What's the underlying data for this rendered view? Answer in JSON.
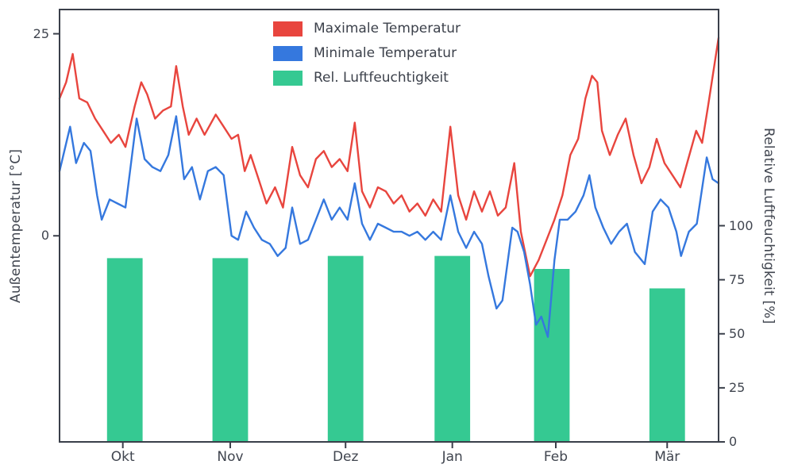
{
  "chart_data": {
    "type": "line+bar",
    "title": "",
    "background_color": "#ffffff",
    "spine_color": "#3a3f4a",
    "text_color": "#40454f",
    "grid": false,
    "legend_position": "upper center",
    "left_axis": {
      "label": "Außentemperatur [°C]",
      "ticks": [
        0,
        25
      ],
      "range": [
        -25.5,
        28
      ]
    },
    "right_axis": {
      "label": "Relative Luftfeuchtigkeit [%]",
      "ticks": [
        0,
        25,
        50,
        75,
        100
      ],
      "range": [
        0,
        200
      ]
    },
    "x_axis": {
      "tick_labels": [
        "Okt",
        "Nov",
        "Dez",
        "Jan",
        "Feb",
        "Mär"
      ],
      "tick_positions": [
        0.096,
        0.259,
        0.434,
        0.596,
        0.753,
        0.922
      ]
    },
    "series": [
      {
        "name": "Maximale Temperatur",
        "type": "line",
        "axis": "left",
        "color": "#e8453e",
        "unit": "°C",
        "points": [
          [
            0.0,
            17.0
          ],
          [
            0.01,
            19.0
          ],
          [
            0.02,
            22.5
          ],
          [
            0.03,
            17.0
          ],
          [
            0.042,
            16.5
          ],
          [
            0.054,
            14.5
          ],
          [
            0.066,
            13.0
          ],
          [
            0.078,
            11.5
          ],
          [
            0.09,
            12.5
          ],
          [
            0.1,
            11.0
          ],
          [
            0.114,
            16.0
          ],
          [
            0.124,
            19.0
          ],
          [
            0.133,
            17.5
          ],
          [
            0.145,
            14.5
          ],
          [
            0.157,
            15.5
          ],
          [
            0.169,
            16.0
          ],
          [
            0.177,
            21.0
          ],
          [
            0.187,
            16.0
          ],
          [
            0.196,
            12.5
          ],
          [
            0.208,
            14.5
          ],
          [
            0.22,
            12.5
          ],
          [
            0.237,
            15.0
          ],
          [
            0.249,
            13.5
          ],
          [
            0.261,
            12.0
          ],
          [
            0.271,
            12.5
          ],
          [
            0.281,
            8.0
          ],
          [
            0.29,
            10.0
          ],
          [
            0.302,
            7.0
          ],
          [
            0.314,
            4.0
          ],
          [
            0.327,
            6.0
          ],
          [
            0.339,
            3.5
          ],
          [
            0.353,
            11.0
          ],
          [
            0.365,
            7.5
          ],
          [
            0.377,
            6.0
          ],
          [
            0.389,
            9.5
          ],
          [
            0.401,
            10.5
          ],
          [
            0.413,
            8.5
          ],
          [
            0.425,
            9.5
          ],
          [
            0.437,
            8.0
          ],
          [
            0.448,
            14.0
          ],
          [
            0.459,
            5.5
          ],
          [
            0.471,
            3.5
          ],
          [
            0.483,
            6.0
          ],
          [
            0.495,
            5.5
          ],
          [
            0.507,
            4.0
          ],
          [
            0.519,
            5.0
          ],
          [
            0.531,
            3.0
          ],
          [
            0.543,
            4.0
          ],
          [
            0.555,
            2.5
          ],
          [
            0.567,
            4.5
          ],
          [
            0.579,
            3.0
          ],
          [
            0.593,
            13.5
          ],
          [
            0.605,
            5.0
          ],
          [
            0.617,
            2.0
          ],
          [
            0.629,
            5.5
          ],
          [
            0.641,
            3.0
          ],
          [
            0.653,
            5.5
          ],
          [
            0.665,
            2.5
          ],
          [
            0.677,
            3.5
          ],
          [
            0.69,
            9.0
          ],
          [
            0.7,
            0.5
          ],
          [
            0.714,
            -5.0
          ],
          [
            0.727,
            -3.0
          ],
          [
            0.739,
            -0.5
          ],
          [
            0.751,
            2.0
          ],
          [
            0.763,
            5.0
          ],
          [
            0.775,
            10.0
          ],
          [
            0.787,
            12.0
          ],
          [
            0.798,
            17.0
          ],
          [
            0.808,
            19.8
          ],
          [
            0.816,
            19.0
          ],
          [
            0.823,
            13.0
          ],
          [
            0.835,
            10.0
          ],
          [
            0.847,
            12.5
          ],
          [
            0.859,
            14.5
          ],
          [
            0.871,
            10.0
          ],
          [
            0.883,
            6.5
          ],
          [
            0.895,
            8.5
          ],
          [
            0.906,
            12.0
          ],
          [
            0.918,
            9.0
          ],
          [
            0.93,
            7.5
          ],
          [
            0.942,
            6.0
          ],
          [
            0.954,
            9.5
          ],
          [
            0.966,
            13.0
          ],
          [
            0.975,
            11.5
          ],
          [
            0.984,
            16.0
          ],
          [
            1.0,
            24.5
          ]
        ]
      },
      {
        "name": "Minimale Temperatur",
        "type": "line",
        "axis": "left",
        "color": "#3578de",
        "unit": "°C",
        "points": [
          [
            0.0,
            8.0
          ],
          [
            0.016,
            13.5
          ],
          [
            0.025,
            9.0
          ],
          [
            0.037,
            11.5
          ],
          [
            0.047,
            10.5
          ],
          [
            0.057,
            5.0
          ],
          [
            0.064,
            2.0
          ],
          [
            0.076,
            4.5
          ],
          [
            0.088,
            4.0
          ],
          [
            0.1,
            3.5
          ],
          [
            0.117,
            14.5
          ],
          [
            0.129,
            9.5
          ],
          [
            0.141,
            8.5
          ],
          [
            0.153,
            8.0
          ],
          [
            0.165,
            10.0
          ],
          [
            0.177,
            14.8
          ],
          [
            0.189,
            7.0
          ],
          [
            0.201,
            8.5
          ],
          [
            0.213,
            4.5
          ],
          [
            0.225,
            8.0
          ],
          [
            0.237,
            8.5
          ],
          [
            0.249,
            7.5
          ],
          [
            0.261,
            0.0
          ],
          [
            0.271,
            -0.5
          ],
          [
            0.283,
            3.0
          ],
          [
            0.295,
            1.0
          ],
          [
            0.307,
            -0.5
          ],
          [
            0.319,
            -1.0
          ],
          [
            0.331,
            -2.5
          ],
          [
            0.343,
            -1.5
          ],
          [
            0.353,
            3.5
          ],
          [
            0.365,
            -1.0
          ],
          [
            0.377,
            -0.5
          ],
          [
            0.389,
            2.0
          ],
          [
            0.401,
            4.5
          ],
          [
            0.413,
            2.0
          ],
          [
            0.425,
            3.5
          ],
          [
            0.437,
            2.0
          ],
          [
            0.448,
            6.5
          ],
          [
            0.459,
            1.5
          ],
          [
            0.471,
            -0.5
          ],
          [
            0.483,
            1.5
          ],
          [
            0.495,
            1.0
          ],
          [
            0.507,
            0.5
          ],
          [
            0.519,
            0.5
          ],
          [
            0.531,
            0.0
          ],
          [
            0.543,
            0.5
          ],
          [
            0.555,
            -0.5
          ],
          [
            0.567,
            0.5
          ],
          [
            0.579,
            -0.5
          ],
          [
            0.593,
            5.0
          ],
          [
            0.605,
            0.5
          ],
          [
            0.617,
            -1.5
          ],
          [
            0.629,
            0.5
          ],
          [
            0.641,
            -1.0
          ],
          [
            0.651,
            -5.0
          ],
          [
            0.663,
            -9.0
          ],
          [
            0.672,
            -8.0
          ],
          [
            0.687,
            1.0
          ],
          [
            0.695,
            0.5
          ],
          [
            0.705,
            -2.0
          ],
          [
            0.714,
            -6.0
          ],
          [
            0.723,
            -11.0
          ],
          [
            0.731,
            -10.0
          ],
          [
            0.741,
            -12.5
          ],
          [
            0.751,
            -3.0
          ],
          [
            0.759,
            2.0
          ],
          [
            0.771,
            2.0
          ],
          [
            0.783,
            3.0
          ],
          [
            0.795,
            5.0
          ],
          [
            0.804,
            7.5
          ],
          [
            0.813,
            3.5
          ],
          [
            0.825,
            1.0
          ],
          [
            0.837,
            -1.0
          ],
          [
            0.849,
            0.5
          ],
          [
            0.861,
            1.5
          ],
          [
            0.873,
            -2.0
          ],
          [
            0.888,
            -3.5
          ],
          [
            0.9,
            3.0
          ],
          [
            0.912,
            4.5
          ],
          [
            0.924,
            3.5
          ],
          [
            0.936,
            0.5
          ],
          [
            0.943,
            -2.5
          ],
          [
            0.955,
            0.5
          ],
          [
            0.967,
            1.5
          ],
          [
            0.982,
            9.7
          ],
          [
            0.991,
            7.0
          ],
          [
            1.0,
            6.5
          ]
        ]
      },
      {
        "name": "Rel. Luftfeuchtigkeit",
        "type": "bar",
        "axis": "right",
        "color": "#35c992",
        "unit": "%",
        "categories": [
          "Okt",
          "Nov",
          "Dez",
          "Jan",
          "Feb",
          "Mär"
        ],
        "values": [
          85,
          85,
          86,
          86,
          80,
          71
        ],
        "bar_centers": [
          0.099,
          0.259,
          0.434,
          0.596,
          0.747,
          0.922
        ],
        "bar_width_frac": 0.054
      }
    ]
  }
}
